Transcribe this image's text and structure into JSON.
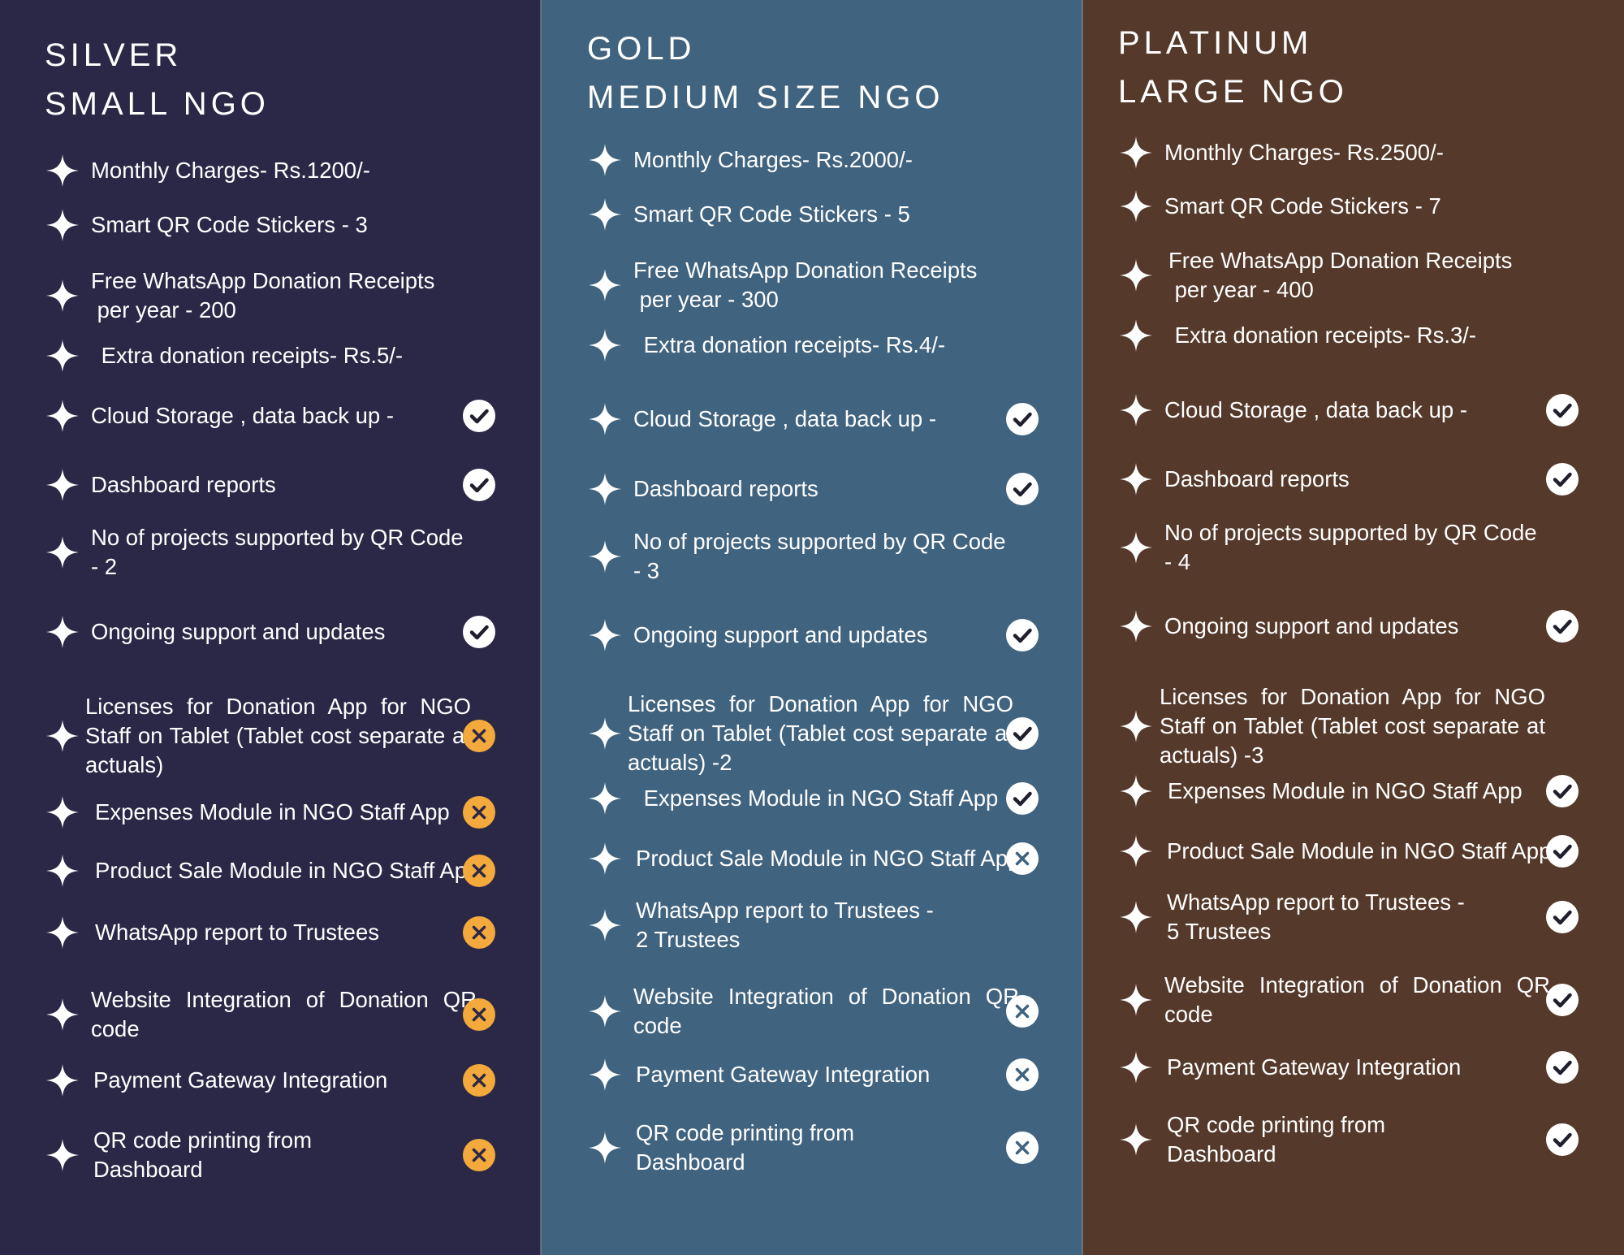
{
  "plans": [
    {
      "id": "silver",
      "title_line1": "SILVER",
      "title_line2": "SMALL NGO",
      "features": [
        {
          "label": "Monthly Charges- Rs.1200/-",
          "status": null
        },
        {
          "label": "Smart QR Code Stickers - 3",
          "status": null
        },
        {
          "label": "Free WhatsApp Donation Receipts\n per year - 200",
          "status": null
        },
        {
          "label": " Extra donation receipts- Rs.5/-",
          "status": null
        },
        {
          "label": "Cloud Storage , data back up -",
          "status": "check"
        },
        {
          "label": "Dashboard reports",
          "status": "check"
        },
        {
          "label": "No of projects supported by QR Code - 2",
          "status": null
        },
        {
          "label": "Ongoing support and updates",
          "status": "check"
        },
        {
          "label": "Licenses for Donation App for NGO Staff on Tablet (Tablet cost separate at actuals)",
          "status": "cross"
        },
        {
          "label": "Expenses Module in NGO Staff App",
          "status": "cross"
        },
        {
          "label": "Product Sale Module in NGO Staff App",
          "status": "cross"
        },
        {
          "label": "WhatsApp report to Trustees",
          "status": "cross"
        },
        {
          "label": "Website Integration of Donation QR code",
          "status": "cross"
        },
        {
          "label": "Payment Gateway Integration",
          "status": "cross"
        },
        {
          "label": "QR code printing from\nDashboard",
          "status": "cross"
        }
      ]
    },
    {
      "id": "gold",
      "title_line1": "GOLD",
      "title_line2": "MEDIUM SIZE NGO",
      "features": [
        {
          "label": "Monthly Charges- Rs.2000/-",
          "status": null
        },
        {
          "label": "Smart QR Code Stickers - 5",
          "status": null
        },
        {
          "label": "Free WhatsApp Donation Receipts\n per year - 300",
          "status": null
        },
        {
          "label": " Extra donation receipts- Rs.4/-",
          "status": null
        },
        {
          "label": "Cloud Storage , data back up -",
          "status": "check"
        },
        {
          "label": "Dashboard reports",
          "status": "check"
        },
        {
          "label": "No of projects supported by QR Code - 3",
          "status": null
        },
        {
          "label": "Ongoing support and updates",
          "status": "check"
        },
        {
          "label": "Licenses for Donation App for NGO Staff on Tablet (Tablet cost separate at actuals) -2",
          "status": "check"
        },
        {
          "label": " Expenses Module in NGO Staff App",
          "status": "check"
        },
        {
          "label": "Product Sale Module in NGO Staff App",
          "status": "cross"
        },
        {
          "label": "WhatsApp report to Trustees -\n2 Trustees",
          "status": null
        },
        {
          "label": "Website Integration of Donation QR code",
          "status": "cross"
        },
        {
          "label": "Payment Gateway Integration",
          "status": "cross"
        },
        {
          "label": "QR code printing from\nDashboard",
          "status": "cross"
        }
      ]
    },
    {
      "id": "platinum",
      "title_line1": "PLATINUM",
      "title_line2": "LARGE NGO",
      "features": [
        {
          "label": "Monthly Charges- Rs.2500/-",
          "status": null
        },
        {
          "label": "Smart QR Code Stickers - 7",
          "status": null
        },
        {
          "label": "Free WhatsApp Donation Receipts\n per year - 400",
          "status": null
        },
        {
          "label": " Extra donation receipts- Rs.3/-",
          "status": null
        },
        {
          "label": "Cloud Storage , data back up -",
          "status": "check"
        },
        {
          "label": "Dashboard reports",
          "status": "check"
        },
        {
          "label": "No of projects supported by QR Code - 4",
          "status": null
        },
        {
          "label": "Ongoing support and updates",
          "status": "check"
        },
        {
          "label": "Licenses for Donation App for NGO Staff on Tablet (Tablet cost separate at actuals) -3",
          "status": null
        },
        {
          "label": "Expenses Module in NGO Staff App",
          "status": "check"
        },
        {
          "label": "Product Sale Module in NGO Staff App",
          "status": "check"
        },
        {
          "label": "WhatsApp report to Trustees -\n5 Trustees",
          "status": "check"
        },
        {
          "label": "Website Integration of Donation QR code",
          "status": "check"
        },
        {
          "label": "Payment Gateway Integration",
          "status": "check"
        },
        {
          "label": "QR code printing from\nDashboard",
          "status": "check"
        }
      ]
    }
  ],
  "icons": {
    "bullet": "sparkle-icon",
    "check": "check-circle-icon",
    "cross": "cross-circle-icon"
  },
  "colors": {
    "silver_bg": "#2b2847",
    "gold_bg": "#40637f",
    "platinum_bg": "#55392a",
    "text": "#ffffff",
    "cross_silver": "#f3a93b",
    "cross_gold": "#ffffff"
  }
}
